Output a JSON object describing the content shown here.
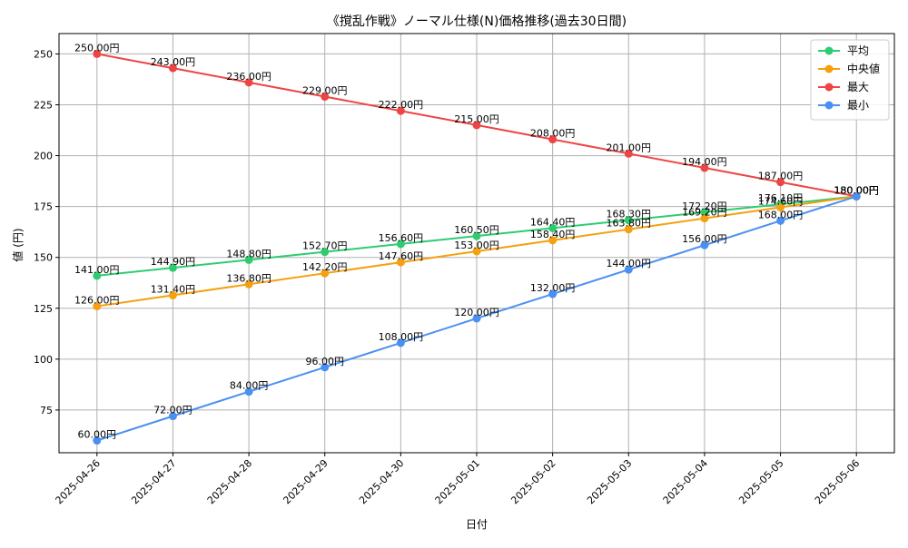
{
  "chart_data": {
    "type": "line",
    "title": "《撹乱作戦》ノーマル仕様(N)価格推移(過去30日間)",
    "xlabel": "日付",
    "ylabel": "値 (円)",
    "ylim": [
      54,
      260
    ],
    "yticks": [
      75,
      100,
      125,
      150,
      175,
      200,
      225,
      250
    ],
    "grid": true,
    "legend_position": "top-right",
    "x": [
      "2025-04-26",
      "2025-04-27",
      "2025-04-28",
      "2025-04-29",
      "2025-04-30",
      "2025-05-01",
      "2025-05-02",
      "2025-05-03",
      "2025-05-04",
      "2025-05-05",
      "2025-05-06"
    ],
    "series": [
      {
        "name": "平均",
        "color": "#2ecc71",
        "values": [
          141.0,
          144.9,
          148.8,
          152.7,
          156.6,
          160.5,
          164.4,
          168.3,
          172.2,
          176.1,
          180.0
        ],
        "labels": [
          "141.00円",
          "144.90円",
          "148.80円",
          "152.70円",
          "156.60円",
          "160.50円",
          "164.40円",
          "168.30円",
          "172.20円",
          "176.10円",
          "180.00円"
        ]
      },
      {
        "name": "中央値",
        "color": "#f5a00f",
        "values": [
          126.0,
          131.4,
          136.8,
          142.2,
          147.6,
          153.0,
          158.4,
          163.8,
          169.2,
          174.6,
          180.0
        ],
        "labels": [
          "126.00円",
          "131.40円",
          "136.80円",
          "142.20円",
          "147.60円",
          "153.00円",
          "158.40円",
          "163.80円",
          "169.20円",
          "174.60円",
          "180.00円"
        ]
      },
      {
        "name": "最大",
        "color": "#ef4444",
        "values": [
          250.0,
          243.0,
          236.0,
          229.0,
          222.0,
          215.0,
          208.0,
          201.0,
          194.0,
          187.0,
          180.0
        ],
        "labels": [
          "250.00円",
          "243.00円",
          "236.00円",
          "229.00円",
          "222.00円",
          "215.00円",
          "208.00円",
          "201.00円",
          "194.00円",
          "187.00円",
          "180.00円"
        ]
      },
      {
        "name": "最小",
        "color": "#4a90f2",
        "values": [
          60.0,
          72.0,
          84.0,
          96.0,
          108.0,
          120.0,
          132.0,
          144.0,
          156.0,
          168.0,
          180.0
        ],
        "labels": [
          "60.00円",
          "72.00円",
          "84.00円",
          "96.00円",
          "108.00円",
          "120.00円",
          "132.00円",
          "144.00円",
          "156.00円",
          "168.00円",
          "180.00円"
        ]
      }
    ]
  }
}
